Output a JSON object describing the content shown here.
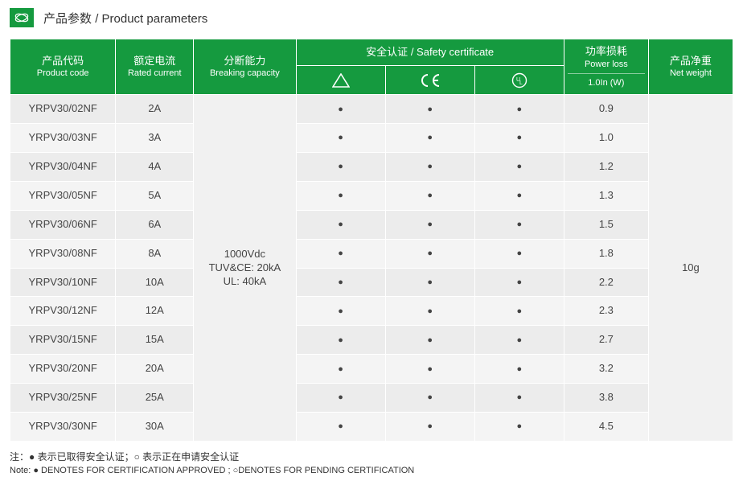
{
  "title": {
    "cn": "产品参数",
    "en": "Product parameters"
  },
  "columns": {
    "code": {
      "cn": "产品代码",
      "en": "Product code"
    },
    "rated": {
      "cn": "额定电流",
      "en": "Rated current"
    },
    "break": {
      "cn": "分断能力",
      "en": "Breaking capacity"
    },
    "safety": {
      "cn": "安全认证",
      "en": "Safety certificate"
    },
    "power": {
      "cn": "功率损耗",
      "en": "Power loss",
      "sub": "1.0In (W)"
    },
    "net": {
      "cn": "产品净重",
      "en": "Net weight"
    }
  },
  "breaking_capacity_lines": [
    "1000Vdc",
    "TUV&CE: 20kA",
    "UL: 40kA"
  ],
  "net_weight": "10g",
  "dot": "●",
  "rows": [
    {
      "code": "YRPV30/02NF",
      "rated": "2A",
      "c1": "●",
      "c2": "●",
      "c3": "●",
      "power": "0.9"
    },
    {
      "code": "YRPV30/03NF",
      "rated": "3A",
      "c1": "●",
      "c2": "●",
      "c3": "●",
      "power": "1.0"
    },
    {
      "code": "YRPV30/04NF",
      "rated": "4A",
      "c1": "●",
      "c2": "●",
      "c3": "●",
      "power": "1.2"
    },
    {
      "code": "YRPV30/05NF",
      "rated": "5A",
      "c1": "●",
      "c2": "●",
      "c3": "●",
      "power": "1.3"
    },
    {
      "code": "YRPV30/06NF",
      "rated": "6A",
      "c1": "●",
      "c2": "●",
      "c3": "●",
      "power": "1.5"
    },
    {
      "code": "YRPV30/08NF",
      "rated": "8A",
      "c1": "●",
      "c2": "●",
      "c3": "●",
      "power": "1.8"
    },
    {
      "code": "YRPV30/10NF",
      "rated": "10A",
      "c1": "●",
      "c2": "●",
      "c3": "●",
      "power": "2.2"
    },
    {
      "code": "YRPV30/12NF",
      "rated": "12A",
      "c1": "●",
      "c2": "●",
      "c3": "●",
      "power": "2.3"
    },
    {
      "code": "YRPV30/15NF",
      "rated": "15A",
      "c1": "●",
      "c2": "●",
      "c3": "●",
      "power": "2.7"
    },
    {
      "code": "YRPV30/20NF",
      "rated": "20A",
      "c1": "●",
      "c2": "●",
      "c3": "●",
      "power": "3.2"
    },
    {
      "code": "YRPV30/25NF",
      "rated": "25A",
      "c1": "●",
      "c2": "●",
      "c3": "●",
      "power": "3.8"
    },
    {
      "code": "YRPV30/30NF",
      "rated": "30A",
      "c1": "●",
      "c2": "●",
      "c3": "●",
      "power": "4.5"
    }
  ],
  "notes": {
    "cn": "注：● 表示已取得安全认证；○ 表示正在申请安全认证",
    "en": "Note: ● DENOTES FOR CERTIFICATION APPROVED ; ○DENOTES FOR PENDING CERTIFICATION"
  },
  "colors": {
    "brand": "#159a3f",
    "row_a": "#ececec",
    "row_b": "#f4f4f4",
    "merged": "#f1f1f1"
  }
}
